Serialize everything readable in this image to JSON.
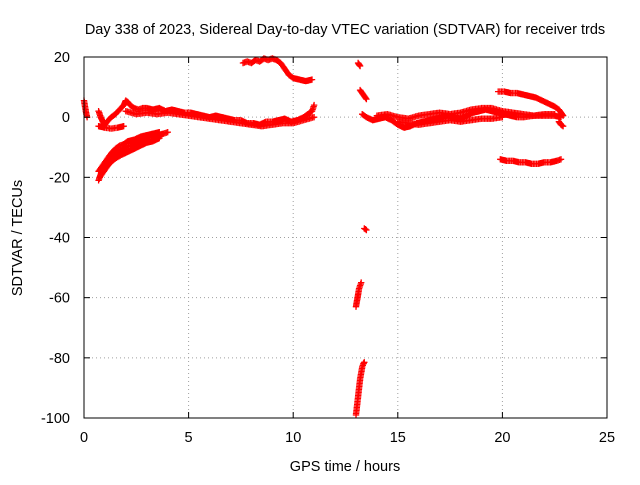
{
  "chart_data": {
    "type": "scatter",
    "title": "Day 338 of 2023, Sidereal Day-to-day VTEC variation (SDTVAR) for receiver trds",
    "xlabel": "GPS time / hours",
    "ylabel": "SDTVAR / TECUs",
    "xlim": [
      0,
      25
    ],
    "ylim": [
      -100,
      20
    ],
    "xticks": [
      0,
      5,
      10,
      15,
      20,
      25
    ],
    "yticks": [
      -100,
      -80,
      -60,
      -40,
      -20,
      0,
      20
    ],
    "grid": true,
    "marker_color": "#ff0000",
    "series": [
      {
        "name": "SDTVAR",
        "segments": [
          {
            "points": [
              [
                0.0,
                5.5
              ],
              [
                0.05,
                3.5
              ],
              [
                0.1,
                1.5
              ],
              [
                0.15,
                0.0
              ]
            ]
          },
          {
            "points": [
              [
                0.7,
                -3.0
              ],
              [
                1.0,
                -3.5
              ],
              [
                1.3,
                -3.8
              ],
              [
                1.6,
                -3.5
              ],
              [
                1.9,
                -3.0
              ]
            ]
          },
          {
            "points": [
              [
                0.7,
                2.0
              ],
              [
                0.8,
                0.0
              ],
              [
                0.9,
                -1.5
              ],
              [
                1.0,
                -2.5
              ],
              [
                1.1,
                -1.5
              ],
              [
                1.3,
                0.0
              ],
              [
                1.5,
                1.0
              ],
              [
                1.7,
                2.5
              ],
              [
                1.9,
                4.0
              ],
              [
                2.0,
                5.5
              ],
              [
                2.1,
                5.0
              ],
              [
                2.2,
                4.0
              ],
              [
                2.4,
                3.0
              ],
              [
                2.6,
                2.5
              ],
              [
                2.8,
                3.0
              ],
              [
                3.0,
                3.0
              ],
              [
                3.3,
                2.5
              ],
              [
                3.6,
                3.0
              ],
              [
                3.9,
                2.0
              ],
              [
                4.2,
                2.5
              ],
              [
                4.5,
                2.0
              ],
              [
                4.8,
                1.5
              ],
              [
                5.1,
                1.5
              ],
              [
                5.4,
                1.0
              ],
              [
                5.7,
                0.5
              ],
              [
                6.0,
                0.0
              ],
              [
                6.3,
                0.5
              ],
              [
                6.6,
                0.0
              ],
              [
                6.9,
                -0.5
              ],
              [
                7.2,
                -1.0
              ],
              [
                7.5,
                -1.0
              ],
              [
                7.8,
                -2.0
              ],
              [
                8.1,
                -2.0
              ],
              [
                8.4,
                -2.5
              ],
              [
                8.7,
                -1.5
              ],
              [
                9.0,
                -1.5
              ],
              [
                9.3,
                -1.0
              ],
              [
                9.6,
                -0.5
              ],
              [
                9.9,
                -1.5
              ],
              [
                10.2,
                -1.0
              ],
              [
                10.5,
                0.0
              ],
              [
                10.7,
                1.0
              ],
              [
                10.9,
                2.0
              ],
              [
                11.0,
                4.0
              ]
            ]
          },
          {
            "points": [
              [
                2.0,
                2.0
              ],
              [
                2.5,
                1.0
              ],
              [
                3.0,
                1.5
              ],
              [
                3.5,
                1.0
              ],
              [
                4.0,
                1.5
              ],
              [
                4.5,
                1.0
              ],
              [
                5.0,
                0.5
              ],
              [
                5.5,
                0.0
              ],
              [
                6.0,
                -0.5
              ],
              [
                6.5,
                -1.0
              ],
              [
                7.0,
                -1.5
              ],
              [
                7.5,
                -2.0
              ],
              [
                8.0,
                -2.5
              ],
              [
                8.5,
                -3.0
              ],
              [
                9.0,
                -2.5
              ],
              [
                9.5,
                -2.0
              ],
              [
                10.0,
                -2.0
              ],
              [
                10.5,
                -1.0
              ],
              [
                11.0,
                0.0
              ]
            ]
          },
          {
            "points": [
              [
                7.6,
                18.0
              ],
              [
                7.8,
                18.5
              ],
              [
                8.0,
                18.0
              ],
              [
                8.2,
                19.0
              ],
              [
                8.4,
                18.5
              ],
              [
                8.6,
                19.5
              ],
              [
                8.8,
                19.0
              ],
              [
                9.0,
                19.5
              ],
              [
                9.2,
                19.0
              ],
              [
                9.4,
                18.0
              ],
              [
                9.6,
                16.0
              ],
              [
                9.8,
                14.0
              ],
              [
                10.0,
                13.0
              ],
              [
                10.3,
                12.5
              ],
              [
                10.6,
                12.0
              ],
              [
                10.9,
                12.5
              ]
            ]
          },
          {
            "points": [
              [
                0.7,
                -21.0
              ],
              [
                0.8,
                -19.0
              ],
              [
                0.9,
                -17.0
              ],
              [
                1.0,
                -15.5
              ],
              [
                1.2,
                -14.0
              ],
              [
                1.4,
                -13.0
              ],
              [
                1.6,
                -12.0
              ],
              [
                1.8,
                -11.0
              ],
              [
                2.0,
                -10.0
              ],
              [
                2.2,
                -9.5
              ],
              [
                2.5,
                -9.0
              ],
              [
                2.8,
                -8.0
              ],
              [
                3.0,
                -7.0
              ],
              [
                3.2,
                -6.5
              ],
              [
                3.5,
                -6.0
              ],
              [
                3.8,
                -5.5
              ],
              [
                4.0,
                -5.0
              ]
            ]
          },
          {
            "points": [
              [
                0.7,
                -18.0
              ],
              [
                0.9,
                -16.0
              ],
              [
                1.1,
                -14.0
              ],
              [
                1.3,
                -12.0
              ],
              [
                1.5,
                -10.5
              ],
              [
                1.7,
                -9.5
              ],
              [
                1.9,
                -9.0
              ],
              [
                2.1,
                -8.0
              ],
              [
                2.4,
                -7.5
              ],
              [
                2.7,
                -6.5
              ],
              [
                3.0,
                -6.0
              ],
              [
                3.3,
                -5.5
              ],
              [
                3.6,
                -5.0
              ]
            ]
          },
          {
            "points": [
              [
                0.75,
                -20.0
              ],
              [
                0.95,
                -18.0
              ],
              [
                1.15,
                -16.0
              ],
              [
                1.35,
                -14.5
              ],
              [
                1.55,
                -13.5
              ],
              [
                1.8,
                -12.5
              ],
              [
                2.1,
                -11.5
              ],
              [
                2.4,
                -10.5
              ],
              [
                2.7,
                -9.5
              ],
              [
                3.0,
                -8.5
              ],
              [
                3.3,
                -8.0
              ],
              [
                3.6,
                -7.0
              ]
            ]
          },
          {
            "points": [
              [
                13.1,
                18.0
              ],
              [
                13.15,
                17.5
              ],
              [
                13.2,
                17.0
              ]
            ]
          },
          {
            "points": [
              [
                13.2,
                9.0
              ],
              [
                13.3,
                8.0
              ],
              [
                13.4,
                7.0
              ],
              [
                13.5,
                6.0
              ]
            ]
          },
          {
            "points": [
              [
                13.4,
                -37.0
              ],
              [
                13.5,
                -37.5
              ]
            ]
          },
          {
            "points": [
              [
                13.0,
                -63.0
              ],
              [
                13.05,
                -61.0
              ],
              [
                13.1,
                -59.0
              ],
              [
                13.15,
                -57.0
              ],
              [
                13.2,
                -56.0
              ],
              [
                13.25,
                -55.0
              ]
            ]
          },
          {
            "points": [
              [
                13.0,
                -99.0
              ],
              [
                13.05,
                -96.0
              ],
              [
                13.1,
                -93.0
              ],
              [
                13.15,
                -90.0
              ],
              [
                13.2,
                -87.0
              ],
              [
                13.25,
                -85.0
              ],
              [
                13.3,
                -83.0
              ],
              [
                13.35,
                -82.0
              ],
              [
                13.4,
                -81.5
              ]
            ]
          },
          {
            "points": [
              [
                13.3,
                1.0
              ],
              [
                13.5,
                0.0
              ],
              [
                13.8,
                -1.0
              ],
              [
                14.1,
                -0.5
              ],
              [
                14.4,
                0.0
              ],
              [
                14.7,
                -1.0
              ],
              [
                15.0,
                -2.5
              ],
              [
                15.3,
                -3.5
              ],
              [
                15.6,
                -3.0
              ],
              [
                15.9,
                -2.0
              ],
              [
                16.2,
                -1.5
              ],
              [
                16.5,
                -1.0
              ],
              [
                16.8,
                -0.5
              ],
              [
                17.1,
                0.0
              ],
              [
                17.4,
                0.5
              ],
              [
                17.7,
                0.0
              ],
              [
                18.0,
                -0.5
              ],
              [
                18.3,
                0.5
              ],
              [
                18.6,
                1.5
              ],
              [
                18.9,
                2.0
              ],
              [
                19.2,
                2.5
              ],
              [
                19.5,
                2.0
              ],
              [
                19.8,
                1.5
              ],
              [
                20.1,
                1.0
              ],
              [
                20.4,
                0.5
              ],
              [
                20.7,
                0.0
              ],
              [
                21.0,
                0.0
              ],
              [
                21.5,
                0.5
              ],
              [
                22.0,
                0.5
              ],
              [
                22.5,
                0.5
              ],
              [
                22.8,
                0.0
              ]
            ]
          },
          {
            "points": [
              [
                14.0,
                0.5
              ],
              [
                14.5,
                1.0
              ],
              [
                15.0,
                0.0
              ],
              [
                15.5,
                -0.5
              ],
              [
                16.0,
                0.5
              ],
              [
                16.5,
                1.0
              ],
              [
                17.0,
                1.5
              ],
              [
                17.5,
                1.0
              ],
              [
                18.0,
                1.5
              ],
              [
                18.5,
                2.5
              ],
              [
                19.0,
                3.0
              ],
              [
                19.5,
                3.0
              ],
              [
                20.0,
                2.0
              ],
              [
                20.5,
                1.5
              ],
              [
                21.0,
                1.0
              ],
              [
                21.5,
                0.5
              ],
              [
                22.0,
                1.0
              ],
              [
                22.5,
                1.0
              ]
            ]
          },
          {
            "points": [
              [
                15.0,
                -1.5
              ],
              [
                15.5,
                -2.0
              ],
              [
                16.0,
                -2.5
              ],
              [
                16.5,
                -2.0
              ],
              [
                17.0,
                -1.5
              ],
              [
                17.5,
                -1.0
              ],
              [
                18.0,
                -1.5
              ],
              [
                18.5,
                -1.0
              ],
              [
                19.0,
                -0.5
              ],
              [
                19.5,
                -0.5
              ],
              [
                20.0,
                0.0
              ]
            ]
          },
          {
            "points": [
              [
                19.8,
                8.5
              ],
              [
                20.1,
                8.5
              ],
              [
                20.4,
                8.0
              ],
              [
                20.7,
                8.0
              ],
              [
                21.0,
                7.5
              ],
              [
                21.3,
                7.0
              ],
              [
                21.6,
                6.5
              ],
              [
                21.9,
                5.5
              ],
              [
                22.2,
                4.5
              ],
              [
                22.5,
                3.5
              ],
              [
                22.7,
                2.5
              ],
              [
                22.8,
                1.5
              ],
              [
                22.9,
                0.5
              ]
            ]
          },
          {
            "points": [
              [
                22.7,
                -1.5
              ],
              [
                22.8,
                -2.5
              ],
              [
                22.9,
                -3.0
              ]
            ]
          },
          {
            "points": [
              [
                19.9,
                -14.0
              ],
              [
                20.2,
                -14.5
              ],
              [
                20.5,
                -14.5
              ],
              [
                20.8,
                -15.0
              ],
              [
                21.1,
                -15.0
              ],
              [
                21.4,
                -15.5
              ],
              [
                21.7,
                -15.5
              ],
              [
                22.0,
                -15.0
              ],
              [
                22.3,
                -15.0
              ],
              [
                22.6,
                -14.5
              ],
              [
                22.8,
                -14.0
              ]
            ]
          }
        ]
      }
    ]
  }
}
